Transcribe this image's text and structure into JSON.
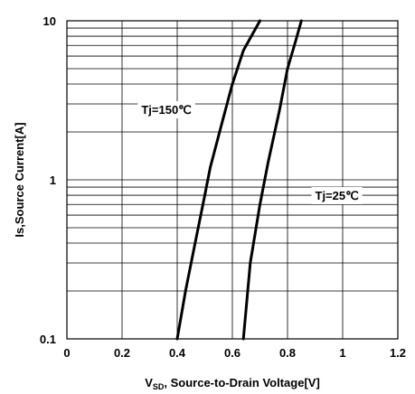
{
  "chart_data": {
    "type": "line",
    "title": "",
    "xlabel_prefix": "V",
    "xlabel_sub": "SD",
    "xlabel_rest": ",  Source-to-Drain Voltage[V]",
    "ylabel": "Is,Source Current[A]",
    "xlim": [
      0,
      1.2
    ],
    "ylim": [
      0.1,
      10
    ],
    "y_scale": "log",
    "grid": true,
    "x_ticks": [
      {
        "value": 0,
        "label": "0"
      },
      {
        "value": 0.2,
        "label": "0.2"
      },
      {
        "value": 0.4,
        "label": "0.4"
      },
      {
        "value": 0.6,
        "label": "0.6"
      },
      {
        "value": 0.8,
        "label": "0.8"
      },
      {
        "value": 1,
        "label": "1"
      },
      {
        "value": 1.2,
        "label": "1.2"
      }
    ],
    "y_ticks": [
      {
        "value": 0.1,
        "label": "0.1"
      },
      {
        "value": 1,
        "label": "1"
      },
      {
        "value": 10,
        "label": "10"
      }
    ],
    "series": [
      {
        "name": "Tj=150℃",
        "points": [
          [
            0.4,
            0.1
          ],
          [
            0.43,
            0.2
          ],
          [
            0.465,
            0.4
          ],
          [
            0.5,
            0.8
          ],
          [
            0.52,
            1.2
          ],
          [
            0.56,
            2.2
          ],
          [
            0.6,
            4.0
          ],
          [
            0.64,
            6.5
          ],
          [
            0.7,
            10
          ]
        ]
      },
      {
        "name": "Tj=25℃",
        "points": [
          [
            0.64,
            0.1
          ],
          [
            0.665,
            0.3
          ],
          [
            0.7,
            0.7
          ],
          [
            0.73,
            1.3
          ],
          [
            0.77,
            2.7
          ],
          [
            0.8,
            5.0
          ],
          [
            0.83,
            7.5
          ],
          [
            0.85,
            10
          ]
        ]
      }
    ],
    "annotations": [
      {
        "text": "Tj=150℃",
        "x": 0.27,
        "y": 2.6
      },
      {
        "text": "Tj=25℃",
        "x": 0.9,
        "y": 0.75
      }
    ]
  }
}
